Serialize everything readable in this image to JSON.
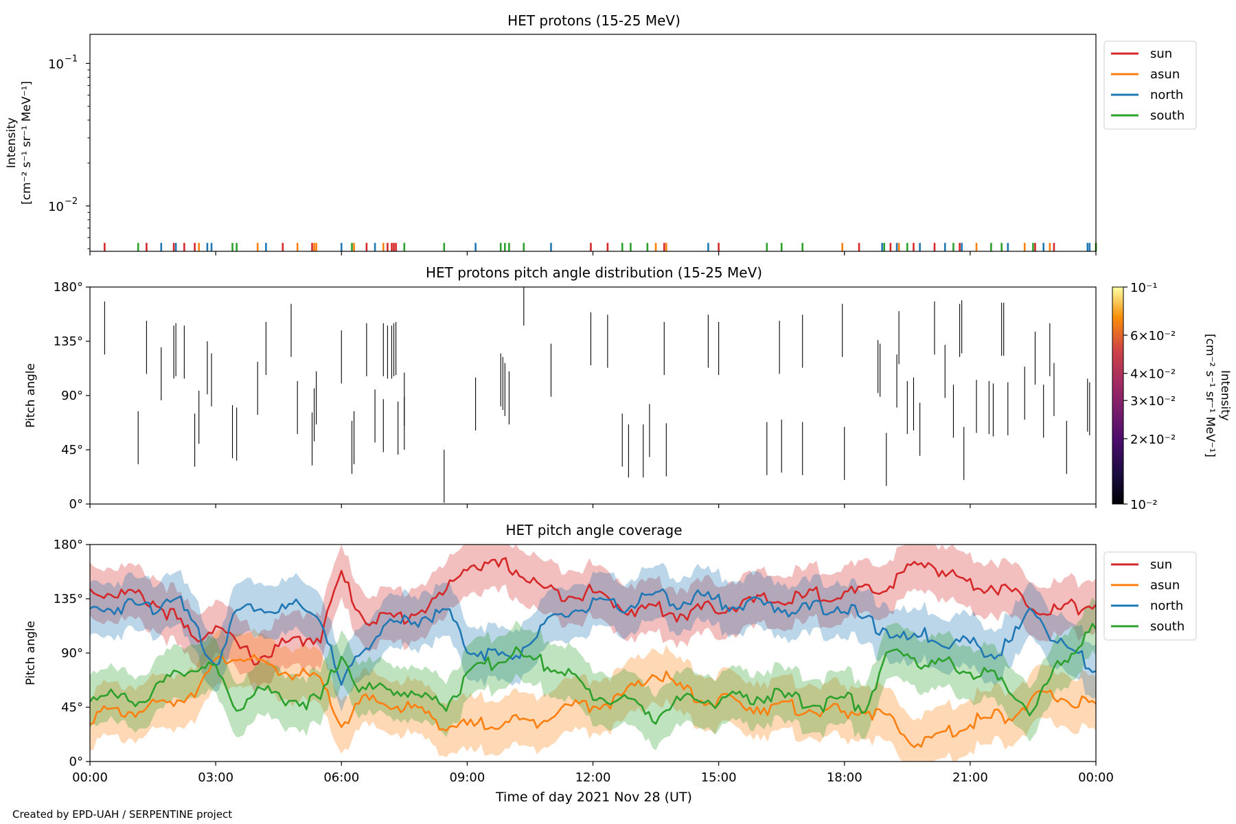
{
  "credit": "Created by EPD-UAH / SERPENTINE project",
  "colors": {
    "sun": "#d62728",
    "asun": "#ff7f0e",
    "north": "#1f77b4",
    "south": "#2ca02c"
  },
  "x_axis": {
    "label": "Time of day 2021 Nov 28 (UT)",
    "ticks": [
      "00:00",
      "03:00",
      "06:00",
      "09:00",
      "12:00",
      "15:00",
      "18:00",
      "21:00",
      "00:00"
    ],
    "range_hours": [
      0,
      24
    ]
  },
  "chart_data": [
    {
      "type": "line",
      "title": "HET protons (15-25 MeV)",
      "ylabel_line1": "Intensity",
      "ylabel_line2": "[cm⁻² s⁻¹ sr⁻¹ MeV⁻¹]",
      "yscale": "log",
      "ylim": [
        0.0048,
        0.16
      ],
      "y_ticks": [
        {
          "value": 0.1,
          "base": "10",
          "exp": "−1"
        },
        {
          "value": 0.01,
          "base": "10",
          "exp": "−2"
        }
      ],
      "legend": {
        "placement": "outside-right",
        "entries": [
          "sun",
          "asun",
          "north",
          "south"
        ]
      },
      "series": [
        {
          "name": "sun",
          "x": [
            0.35,
            1.35,
            2.0,
            2.25,
            2.5,
            4.6,
            5.3,
            6.6,
            7.1,
            7.2,
            7.25,
            7.3,
            11.95,
            12.35,
            13.7,
            15.0,
            18.35,
            19.1,
            19.65,
            20.15,
            20.75,
            22.55,
            23.0
          ],
          "y": [
            0.0055,
            0.0055,
            0.0055,
            0.0055,
            0.0055,
            0.0055,
            0.0055,
            0.0055,
            0.0055,
            0.0055,
            0.0055,
            0.0055,
            0.0055,
            0.0055,
            0.0055,
            0.0055,
            0.0055,
            0.0055,
            0.0055,
            0.0055,
            0.0055,
            0.0055,
            0.0055
          ]
        },
        {
          "name": "asun",
          "x": [
            2.6,
            4.0,
            4.95,
            5.35,
            5.4,
            6.3,
            7.0,
            13.5,
            13.75,
            17.95,
            19.3,
            21.15,
            22.3,
            22.9,
            24.0
          ],
          "y": [
            0.0055,
            0.0055,
            0.0055,
            0.0055,
            0.0055,
            0.0055,
            0.0055,
            0.0055,
            0.0055,
            0.0055,
            0.0055,
            0.0055,
            0.0055,
            0.0055,
            0.0055
          ]
        },
        {
          "name": "north",
          "x": [
            1.7,
            2.05,
            2.8,
            2.9,
            4.2,
            6.0,
            6.8,
            9.2,
            11.0,
            14.75,
            18.9,
            19.25,
            19.8,
            20.4,
            20.8,
            21.9,
            22.75,
            23.8,
            23.85
          ],
          "y": [
            0.0055,
            0.0055,
            0.0055,
            0.0055,
            0.0055,
            0.0055,
            0.0055,
            0.0055,
            0.0055,
            0.0055,
            0.0055,
            0.0055,
            0.0055,
            0.0055,
            0.0055,
            0.0055,
            0.0055,
            0.0055,
            0.0055
          ]
        },
        {
          "name": "south",
          "x": [
            1.15,
            3.4,
            3.5,
            6.25,
            7.5,
            8.45,
            9.8,
            9.9,
            10.0,
            10.35,
            12.7,
            12.9,
            13.3,
            16.15,
            16.5,
            17.0,
            18.95,
            19.5,
            20.6,
            21.5,
            21.75,
            22.5,
            24.0
          ],
          "y": [
            0.0055,
            0.0055,
            0.0055,
            0.0055,
            0.0055,
            0.0055,
            0.0055,
            0.0055,
            0.0055,
            0.0055,
            0.0055,
            0.0055,
            0.0055,
            0.0055,
            0.0055,
            0.0055,
            0.0055,
            0.0055,
            0.0055,
            0.0055,
            0.0055,
            0.0055,
            0.0055
          ]
        }
      ]
    },
    {
      "type": "heatmap",
      "title": "HET protons pitch angle distribution (15-25 MeV)",
      "ylabel": "Pitch angle",
      "ylim": [
        0,
        180
      ],
      "y_ticks": [
        "0°",
        "45°",
        "90°",
        "135°",
        "180°"
      ],
      "colorbar": {
        "label": "Intensity",
        "units": "[cm⁻² s⁻¹ sr⁻¹ MeV⁻¹]",
        "scale": "log",
        "range": [
          0.01,
          0.1
        ],
        "ticks": [
          {
            "value": 0.1,
            "text": "10⁻¹"
          },
          {
            "value": 0.06,
            "text": "6×10⁻²"
          },
          {
            "value": 0.04,
            "text": "4×10⁻²"
          },
          {
            "value": 0.03,
            "text": "3×10⁻²"
          },
          {
            "value": 0.02,
            "text": "2×10⁻²"
          },
          {
            "value": 0.01,
            "text": "10⁻²"
          }
        ]
      },
      "segments": [
        {
          "x": 0.35,
          "y0": 124,
          "y1": 168
        },
        {
          "x": 1.15,
          "y0": 33,
          "y1": 77
        },
        {
          "x": 1.35,
          "y0": 108,
          "y1": 152
        },
        {
          "x": 1.7,
          "y0": 86,
          "y1": 130
        },
        {
          "x": 2.0,
          "y0": 104,
          "y1": 148
        },
        {
          "x": 2.05,
          "y0": 106,
          "y1": 150
        },
        {
          "x": 2.25,
          "y0": 104,
          "y1": 148
        },
        {
          "x": 2.5,
          "y0": 31,
          "y1": 75
        },
        {
          "x": 2.6,
          "y0": 50,
          "y1": 94
        },
        {
          "x": 2.8,
          "y0": 91,
          "y1": 135
        },
        {
          "x": 2.9,
          "y0": 81,
          "y1": 125
        },
        {
          "x": 3.4,
          "y0": 38,
          "y1": 82
        },
        {
          "x": 3.5,
          "y0": 36,
          "y1": 80
        },
        {
          "x": 4.0,
          "y0": 74,
          "y1": 118
        },
        {
          "x": 4.2,
          "y0": 107,
          "y1": 151
        },
        {
          "x": 4.8,
          "y0": 122,
          "y1": 166
        },
        {
          "x": 4.95,
          "y0": 58,
          "y1": 102
        },
        {
          "x": 5.3,
          "y0": 32,
          "y1": 76
        },
        {
          "x": 5.35,
          "y0": 52,
          "y1": 96
        },
        {
          "x": 5.4,
          "y0": 66,
          "y1": 110
        },
        {
          "x": 6.0,
          "y0": 100,
          "y1": 144
        },
        {
          "x": 6.25,
          "y0": 25,
          "y1": 69
        },
        {
          "x": 6.3,
          "y0": 33,
          "y1": 77
        },
        {
          "x": 6.6,
          "y0": 106,
          "y1": 150
        },
        {
          "x": 6.8,
          "y0": 51,
          "y1": 95
        },
        {
          "x": 7.0,
          "y0": 106,
          "y1": 150
        },
        {
          "x": 7.1,
          "y0": 104,
          "y1": 148
        },
        {
          "x": 7.2,
          "y0": 104,
          "y1": 148
        },
        {
          "x": 7.25,
          "y0": 106,
          "y1": 150
        },
        {
          "x": 7.3,
          "y0": 107,
          "y1": 151
        },
        {
          "x": 7.0,
          "y0": 43,
          "y1": 87
        },
        {
          "x": 7.35,
          "y0": 41,
          "y1": 85
        },
        {
          "x": 7.5,
          "y0": 45,
          "y1": 89
        },
        {
          "x": 7.5,
          "y0": 65,
          "y1": 109
        },
        {
          "x": 8.45,
          "y0": 1,
          "y1": 45
        },
        {
          "x": 9.2,
          "y0": 61,
          "y1": 105
        },
        {
          "x": 9.8,
          "y0": 81,
          "y1": 125
        },
        {
          "x": 9.85,
          "y0": 78,
          "y1": 122
        },
        {
          "x": 9.9,
          "y0": 73,
          "y1": 117
        },
        {
          "x": 10.0,
          "y0": 66,
          "y1": 110
        },
        {
          "x": 10.35,
          "y0": 148,
          "y1": 180
        },
        {
          "x": 11.0,
          "y0": 89,
          "y1": 133
        },
        {
          "x": 11.95,
          "y0": 115,
          "y1": 159
        },
        {
          "x": 12.35,
          "y0": 113,
          "y1": 157
        },
        {
          "x": 12.7,
          "y0": 31,
          "y1": 75
        },
        {
          "x": 12.85,
          "y0": 22,
          "y1": 66
        },
        {
          "x": 13.2,
          "y0": 22,
          "y1": 66
        },
        {
          "x": 13.35,
          "y0": 39,
          "y1": 83
        },
        {
          "x": 13.7,
          "y0": 107,
          "y1": 151
        },
        {
          "x": 13.75,
          "y0": 23,
          "y1": 67
        },
        {
          "x": 14.75,
          "y0": 113,
          "y1": 157
        },
        {
          "x": 15.0,
          "y0": 107,
          "y1": 151
        },
        {
          "x": 16.15,
          "y0": 24,
          "y1": 68
        },
        {
          "x": 16.45,
          "y0": 108,
          "y1": 152
        },
        {
          "x": 16.5,
          "y0": 26,
          "y1": 70
        },
        {
          "x": 17.0,
          "y0": 113,
          "y1": 157
        },
        {
          "x": 17.0,
          "y0": 24,
          "y1": 68
        },
        {
          "x": 17.95,
          "y0": 122,
          "y1": 166
        },
        {
          "x": 18.0,
          "y0": 20,
          "y1": 64
        },
        {
          "x": 18.8,
          "y0": 92,
          "y1": 136
        },
        {
          "x": 18.85,
          "y0": 89,
          "y1": 133
        },
        {
          "x": 19.0,
          "y0": 15,
          "y1": 59
        },
        {
          "x": 19.25,
          "y0": 80,
          "y1": 124
        },
        {
          "x": 19.3,
          "y0": 116,
          "y1": 160
        },
        {
          "x": 19.5,
          "y0": 58,
          "y1": 102
        },
        {
          "x": 19.65,
          "y0": 61,
          "y1": 105
        },
        {
          "x": 19.8,
          "y0": 40,
          "y1": 84
        },
        {
          "x": 20.15,
          "y0": 124,
          "y1": 168
        },
        {
          "x": 20.4,
          "y0": 88,
          "y1": 132
        },
        {
          "x": 20.6,
          "y0": 55,
          "y1": 99
        },
        {
          "x": 20.75,
          "y0": 122,
          "y1": 166
        },
        {
          "x": 20.8,
          "y0": 125,
          "y1": 169
        },
        {
          "x": 20.85,
          "y0": 20,
          "y1": 64
        },
        {
          "x": 21.15,
          "y0": 59,
          "y1": 103
        },
        {
          "x": 21.45,
          "y0": 58,
          "y1": 102
        },
        {
          "x": 21.55,
          "y0": 56,
          "y1": 100
        },
        {
          "x": 21.75,
          "y0": 123,
          "y1": 167
        },
        {
          "x": 21.8,
          "y0": 123,
          "y1": 167
        },
        {
          "x": 21.9,
          "y0": 57,
          "y1": 101
        },
        {
          "x": 22.3,
          "y0": 70,
          "y1": 114
        },
        {
          "x": 22.55,
          "y0": 99,
          "y1": 143
        },
        {
          "x": 22.75,
          "y0": 55,
          "y1": 99
        },
        {
          "x": 22.9,
          "y0": 106,
          "y1": 150
        },
        {
          "x": 23.0,
          "y0": 73,
          "y1": 117
        },
        {
          "x": 23.3,
          "y0": 25,
          "y1": 69
        },
        {
          "x": 23.8,
          "y0": 60,
          "y1": 104
        },
        {
          "x": 23.85,
          "y0": 57,
          "y1": 101
        }
      ]
    },
    {
      "type": "line",
      "title": "HET pitch angle coverage",
      "ylabel": "Pitch angle",
      "ylim": [
        0,
        180
      ],
      "y_ticks": [
        "0°",
        "45°",
        "90°",
        "135°",
        "180°"
      ],
      "legend": {
        "placement": "outside-right",
        "entries": [
          "sun",
          "asun",
          "north",
          "south"
        ]
      },
      "band_halfwidth_deg": 22,
      "x": [
        0,
        0.5,
        1,
        1.5,
        2,
        2.5,
        3,
        3.5,
        4,
        4.5,
        5,
        5.5,
        6,
        6.5,
        7,
        7.5,
        8,
        8.5,
        9,
        9.5,
        10,
        10.5,
        11,
        11.5,
        12,
        12.5,
        13,
        13.5,
        14,
        14.5,
        15,
        15.5,
        16,
        16.5,
        17,
        17.5,
        18,
        18.5,
        19,
        19.5,
        20,
        20.5,
        21,
        21.5,
        22,
        22.5,
        23,
        23.5,
        24
      ],
      "series": [
        {
          "name": "sun",
          "values": [
            142,
            140,
            138,
            133,
            120,
            100,
            115,
            95,
            85,
            95,
            100,
            105,
            155,
            120,
            118,
            120,
            128,
            140,
            165,
            160,
            163,
            150,
            140,
            140,
            140,
            132,
            125,
            128,
            122,
            125,
            128,
            130,
            133,
            134,
            135,
            140,
            138,
            140,
            145,
            158,
            165,
            155,
            148,
            146,
            140,
            130,
            125,
            128,
            130
          ]
        },
        {
          "name": "asun",
          "values": [
            38,
            40,
            42,
            45,
            50,
            60,
            80,
            90,
            80,
            76,
            72,
            66,
            30,
            50,
            48,
            45,
            40,
            30,
            28,
            32,
            35,
            30,
            42,
            45,
            48,
            50,
            60,
            75,
            62,
            52,
            50,
            48,
            46,
            44,
            45,
            42,
            40,
            44,
            35,
            20,
            15,
            25,
            32,
            36,
            40,
            50,
            55,
            50,
            48
          ]
        },
        {
          "name": "north",
          "values": [
            125,
            128,
            130,
            128,
            140,
            110,
            80,
            125,
            130,
            125,
            128,
            120,
            60,
            95,
            110,
            115,
            120,
            125,
            95,
            90,
            85,
            100,
            115,
            125,
            130,
            128,
            132,
            138,
            132,
            136,
            133,
            130,
            130,
            128,
            125,
            128,
            130,
            115,
            110,
            100,
            105,
            100,
            98,
            90,
            100,
            130,
            100,
            90,
            75
          ]
        },
        {
          "name": "south",
          "values": [
            55,
            53,
            52,
            56,
            70,
            80,
            75,
            45,
            60,
            55,
            50,
            50,
            90,
            58,
            62,
            58,
            52,
            48,
            70,
            80,
            90,
            85,
            80,
            70,
            55,
            52,
            48,
            38,
            48,
            52,
            50,
            52,
            55,
            53,
            50,
            48,
            52,
            45,
            85,
            90,
            80,
            82,
            75,
            70,
            60,
            40,
            75,
            95,
            110
          ]
        }
      ]
    }
  ]
}
